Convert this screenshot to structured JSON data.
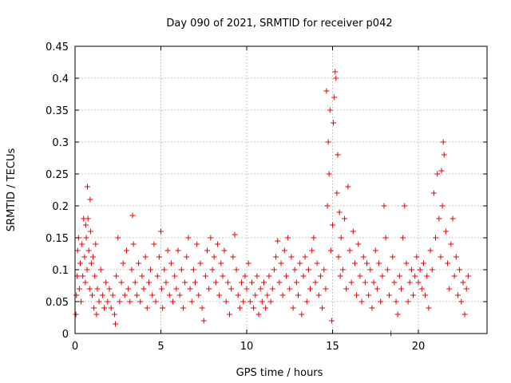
{
  "chart_data": {
    "type": "scatter",
    "title": "Day 090 of 2021, SRMTID for receiver p042",
    "xlabel": "GPS time / hours",
    "ylabel": "SRMTID / TECUs",
    "xlim": [
      0,
      24
    ],
    "ylim": [
      0,
      0.45
    ],
    "xticks": [
      0,
      5,
      10,
      15,
      20
    ],
    "xtick_labels": [
      "0",
      "5",
      "10",
      "15",
      "20"
    ],
    "yticks": [
      0,
      0.05,
      0.1,
      0.15,
      0.2,
      0.25,
      0.3,
      0.35,
      0.4,
      0.45
    ],
    "ytick_labels": [
      "0",
      "0.05",
      "0.1",
      "0.15",
      "0.2",
      "0.25",
      "0.3",
      "0.35",
      "0.4",
      "0.45"
    ],
    "grid": true,
    "marker": "plus",
    "color": "#ee0000",
    "series": [
      {
        "name": "SRMTID",
        "points": [
          [
            0.05,
            0.03
          ],
          [
            0.08,
            0.06
          ],
          [
            0.12,
            0.09
          ],
          [
            0.15,
            0.13
          ],
          [
            0.2,
            0.15
          ],
          [
            0.25,
            0.07
          ],
          [
            0.3,
            0.11
          ],
          [
            0.35,
            0.05
          ],
          [
            0.4,
            0.14
          ],
          [
            0.45,
            0.09
          ],
          [
            0.5,
            0.18
          ],
          [
            0.55,
            0.12
          ],
          [
            0.6,
            0.08
          ],
          [
            0.62,
            0.17
          ],
          [
            0.65,
            0.15
          ],
          [
            0.7,
            0.1
          ],
          [
            0.72,
            0.23
          ],
          [
            0.75,
            0.18
          ],
          [
            0.8,
            0.13
          ],
          [
            0.85,
            0.07
          ],
          [
            0.88,
            0.21
          ],
          [
            0.9,
            0.16
          ],
          [
            0.95,
            0.11
          ],
          [
            1.0,
            0.06
          ],
          [
            1.05,
            0.12
          ],
          [
            1.1,
            0.04
          ],
          [
            1.15,
            0.09
          ],
          [
            1.2,
            0.14
          ],
          [
            1.25,
            0.03
          ],
          [
            1.3,
            0.07
          ],
          [
            1.4,
            0.05
          ],
          [
            1.5,
            0.1
          ],
          [
            1.6,
            0.06
          ],
          [
            1.7,
            0.04
          ],
          [
            1.8,
            0.08
          ],
          [
            1.9,
            0.05
          ],
          [
            2.0,
            0.07
          ],
          [
            2.1,
            0.04
          ],
          [
            2.2,
            0.06
          ],
          [
            2.3,
            0.03
          ],
          [
            2.35,
            0.015
          ],
          [
            2.4,
            0.09
          ],
          [
            2.5,
            0.15
          ],
          [
            2.6,
            0.05
          ],
          [
            2.7,
            0.08
          ],
          [
            2.8,
            0.11
          ],
          [
            2.9,
            0.06
          ],
          [
            3.0,
            0.13
          ],
          [
            3.1,
            0.07
          ],
          [
            3.2,
            0.05
          ],
          [
            3.3,
            0.1
          ],
          [
            3.35,
            0.185
          ],
          [
            3.4,
            0.14
          ],
          [
            3.5,
            0.08
          ],
          [
            3.6,
            0.06
          ],
          [
            3.7,
            0.11
          ],
          [
            3.8,
            0.05
          ],
          [
            3.9,
            0.09
          ],
          [
            4.0,
            0.07
          ],
          [
            4.1,
            0.12
          ],
          [
            4.2,
            0.04
          ],
          [
            4.3,
            0.08
          ],
          [
            4.4,
            0.1
          ],
          [
            4.5,
            0.06
          ],
          [
            4.6,
            0.14
          ],
          [
            4.7,
            0.05
          ],
          [
            4.8,
            0.09
          ],
          [
            4.9,
            0.12
          ],
          [
            5.0,
            0.16
          ],
          [
            5.05,
            0.07
          ],
          [
            5.1,
            0.04
          ],
          [
            5.2,
            0.1
          ],
          [
            5.3,
            0.08
          ],
          [
            5.4,
            0.13
          ],
          [
            5.5,
            0.06
          ],
          [
            5.6,
            0.11
          ],
          [
            5.7,
            0.05
          ],
          [
            5.8,
            0.09
          ],
          [
            5.9,
            0.07
          ],
          [
            6.0,
            0.13
          ],
          [
            6.1,
            0.06
          ],
          [
            6.2,
            0.1
          ],
          [
            6.3,
            0.04
          ],
          [
            6.4,
            0.08
          ],
          [
            6.5,
            0.12
          ],
          [
            6.6,
            0.15
          ],
          [
            6.7,
            0.07
          ],
          [
            6.8,
            0.05
          ],
          [
            6.9,
            0.1
          ],
          [
            7.0,
            0.08
          ],
          [
            7.1,
            0.14
          ],
          [
            7.2,
            0.06
          ],
          [
            7.3,
            0.11
          ],
          [
            7.4,
            0.04
          ],
          [
            7.5,
            0.02
          ],
          [
            7.6,
            0.09
          ],
          [
            7.7,
            0.13
          ],
          [
            7.8,
            0.07
          ],
          [
            7.9,
            0.15
          ],
          [
            8.0,
            0.1
          ],
          [
            8.1,
            0.12
          ],
          [
            8.2,
            0.08
          ],
          [
            8.3,
            0.14
          ],
          [
            8.4,
            0.06
          ],
          [
            8.5,
            0.11
          ],
          [
            8.6,
            0.09
          ],
          [
            8.7,
            0.13
          ],
          [
            8.8,
            0.05
          ],
          [
            8.9,
            0.08
          ],
          [
            9.0,
            0.03
          ],
          [
            9.1,
            0.07
          ],
          [
            9.2,
            0.12
          ],
          [
            9.3,
            0.155
          ],
          [
            9.4,
            0.1
          ],
          [
            9.5,
            0.06
          ],
          [
            9.6,
            0.04
          ],
          [
            9.7,
            0.08
          ],
          [
            9.8,
            0.05
          ],
          [
            9.9,
            0.09
          ],
          [
            10.0,
            0.07
          ],
          [
            10.1,
            0.11
          ],
          [
            10.2,
            0.05
          ],
          [
            10.3,
            0.08
          ],
          [
            10.4,
            0.04
          ],
          [
            10.5,
            0.06
          ],
          [
            10.6,
            0.09
          ],
          [
            10.7,
            0.03
          ],
          [
            10.8,
            0.07
          ],
          [
            10.9,
            0.05
          ],
          [
            11.0,
            0.08
          ],
          [
            11.1,
            0.04
          ],
          [
            11.2,
            0.06
          ],
          [
            11.3,
            0.09
          ],
          [
            11.4,
            0.05
          ],
          [
            11.5,
            0.07
          ],
          [
            11.6,
            0.1
          ],
          [
            11.7,
            0.12
          ],
          [
            11.8,
            0.145
          ],
          [
            11.9,
            0.08
          ],
          [
            12.0,
            0.11
          ],
          [
            12.1,
            0.06
          ],
          [
            12.2,
            0.13
          ],
          [
            12.3,
            0.09
          ],
          [
            12.4,
            0.15
          ],
          [
            12.5,
            0.07
          ],
          [
            12.6,
            0.12
          ],
          [
            12.7,
            0.04
          ],
          [
            12.8,
            0.1
          ],
          [
            12.9,
            0.08
          ],
          [
            13.0,
            0.06
          ],
          [
            13.1,
            0.11
          ],
          [
            13.2,
            0.03
          ],
          [
            13.3,
            0.09
          ],
          [
            13.4,
            0.12
          ],
          [
            13.5,
            0.05
          ],
          [
            13.6,
            0.1
          ],
          [
            13.7,
            0.07
          ],
          [
            13.8,
            0.13
          ],
          [
            13.9,
            0.15
          ],
          [
            14.0,
            0.08
          ],
          [
            14.1,
            0.11
          ],
          [
            14.2,
            0.06
          ],
          [
            14.3,
            0.09
          ],
          [
            14.4,
            0.04
          ],
          [
            14.5,
            0.1
          ],
          [
            14.6,
            0.07
          ],
          [
            14.65,
            0.38
          ],
          [
            14.7,
            0.2
          ],
          [
            14.75,
            0.3
          ],
          [
            14.8,
            0.25
          ],
          [
            14.85,
            0.35
          ],
          [
            14.9,
            0.13
          ],
          [
            14.95,
            0.02
          ],
          [
            15.0,
            0.17
          ],
          [
            15.05,
            0.33
          ],
          [
            15.1,
            0.37
          ],
          [
            15.15,
            0.41
          ],
          [
            15.2,
            0.4
          ],
          [
            15.25,
            0.22
          ],
          [
            15.3,
            0.28
          ],
          [
            15.35,
            0.12
          ],
          [
            15.4,
            0.19
          ],
          [
            15.45,
            0.09
          ],
          [
            15.5,
            0.15
          ],
          [
            15.6,
            0.1
          ],
          [
            15.7,
            0.18
          ],
          [
            15.8,
            0.07
          ],
          [
            15.9,
            0.23
          ],
          [
            16.0,
            0.13
          ],
          [
            16.1,
            0.08
          ],
          [
            16.2,
            0.16
          ],
          [
            16.3,
            0.11
          ],
          [
            16.4,
            0.06
          ],
          [
            16.5,
            0.14
          ],
          [
            16.6,
            0.09
          ],
          [
            16.7,
            0.05
          ],
          [
            16.8,
            0.12
          ],
          [
            16.9,
            0.08
          ],
          [
            17.0,
            0.11
          ],
          [
            17.1,
            0.06
          ],
          [
            17.2,
            0.1
          ],
          [
            17.3,
            0.04
          ],
          [
            17.4,
            0.08
          ],
          [
            17.5,
            0.13
          ],
          [
            17.6,
            0.07
          ],
          [
            17.7,
            0.11
          ],
          [
            17.8,
            0.05
          ],
          [
            17.9,
            0.09
          ],
          [
            18.0,
            0.2
          ],
          [
            18.1,
            0.15
          ],
          [
            18.2,
            0.1
          ],
          [
            18.3,
            0.06
          ],
          [
            18.4,
            0.0
          ],
          [
            18.5,
            0.12
          ],
          [
            18.6,
            0.08
          ],
          [
            18.7,
            0.05
          ],
          [
            18.8,
            0.03
          ],
          [
            18.9,
            0.09
          ],
          [
            19.0,
            0.07
          ],
          [
            19.1,
            0.15
          ],
          [
            19.2,
            0.2
          ],
          [
            19.3,
            0.11
          ],
          [
            19.4,
            0.05
          ],
          [
            19.5,
            0.08
          ],
          [
            19.6,
            0.1
          ],
          [
            19.7,
            0.06
          ],
          [
            19.8,
            0.09
          ],
          [
            19.9,
            0.12
          ],
          [
            20.0,
            0.08
          ],
          [
            20.1,
            0.1
          ],
          [
            20.2,
            0.07
          ],
          [
            20.3,
            0.11
          ],
          [
            20.4,
            0.06
          ],
          [
            20.5,
            0.09
          ],
          [
            20.6,
            0.04
          ],
          [
            20.7,
            0.13
          ],
          [
            20.8,
            0.1
          ],
          [
            20.9,
            0.22
          ],
          [
            21.0,
            0.15
          ],
          [
            21.1,
            0.25
          ],
          [
            21.2,
            0.18
          ],
          [
            21.3,
            0.12
          ],
          [
            21.35,
            0.255
          ],
          [
            21.4,
            0.2
          ],
          [
            21.45,
            0.3
          ],
          [
            21.5,
            0.28
          ],
          [
            21.6,
            0.16
          ],
          [
            21.7,
            0.11
          ],
          [
            21.8,
            0.07
          ],
          [
            21.9,
            0.14
          ],
          [
            22.0,
            0.18
          ],
          [
            22.1,
            0.09
          ],
          [
            22.2,
            0.12
          ],
          [
            22.3,
            0.06
          ],
          [
            22.4,
            0.1
          ],
          [
            22.5,
            0.05
          ],
          [
            22.6,
            0.08
          ],
          [
            22.7,
            0.03
          ],
          [
            22.8,
            0.07
          ],
          [
            22.9,
            0.09
          ]
        ]
      }
    ]
  }
}
